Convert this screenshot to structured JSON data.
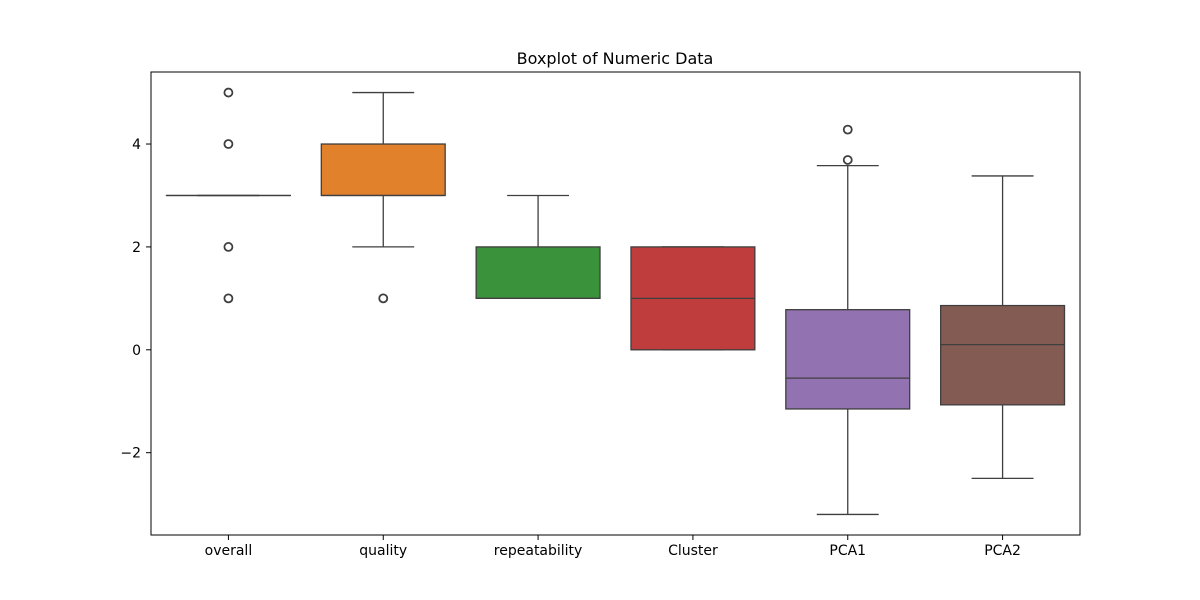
{
  "chart_data": {
    "type": "box",
    "title": "Boxplot of Numeric Data",
    "xlabel": "",
    "ylabel": "",
    "ylim": [
      -3.6,
      5.4
    ],
    "yticks": [
      -2,
      0,
      2,
      4
    ],
    "ytick_labels": [
      "−2",
      "0",
      "2",
      "4"
    ],
    "grid": false,
    "legend": "none",
    "categories": [
      "overall",
      "quality",
      "repeatability",
      "Cluster",
      "PCA1",
      "PCA2"
    ],
    "boxes": [
      {
        "category": "overall",
        "color": "#3a73b0",
        "whisker_low": 3,
        "q1": 3,
        "median": 3,
        "q3": 3,
        "whisker_high": 3,
        "outliers": [
          1,
          2,
          4,
          5
        ]
      },
      {
        "category": "quality",
        "color": "#e1812c",
        "whisker_low": 2,
        "q1": 3,
        "median": 3,
        "q3": 4,
        "whisker_high": 5,
        "outliers": [
          1
        ]
      },
      {
        "category": "repeatability",
        "color": "#3a923a",
        "whisker_low": 1,
        "q1": 1,
        "median": 1,
        "q3": 2,
        "whisker_high": 3,
        "outliers": []
      },
      {
        "category": "Cluster",
        "color": "#c03d3e",
        "whisker_low": 0,
        "q1": 0,
        "median": 1,
        "q3": 2,
        "whisker_high": 2,
        "outliers": []
      },
      {
        "category": "PCA1",
        "color": "#9372b2",
        "whisker_low": -3.2,
        "q1": -1.15,
        "median": -0.55,
        "q3": 0.78,
        "whisker_high": 3.58,
        "outliers": [
          3.69,
          4.28
        ]
      },
      {
        "category": "PCA2",
        "color": "#845b53",
        "whisker_low": -2.5,
        "q1": -1.07,
        "median": 0.1,
        "q3": 0.86,
        "whisker_high": 3.38,
        "outliers": []
      }
    ]
  }
}
